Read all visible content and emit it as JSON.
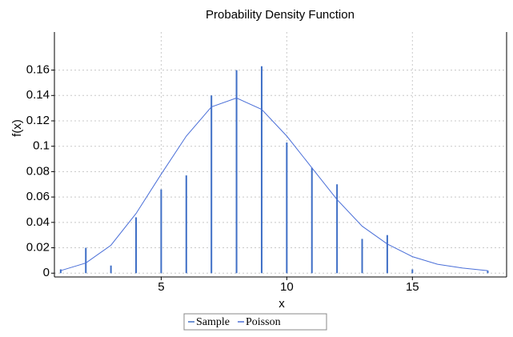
{
  "chart_data": {
    "type": "stem_line",
    "title": "Probability Density Function",
    "x_label": "x",
    "y_label": "f(x)",
    "x": [
      1,
      2,
      3,
      4,
      5,
      6,
      7,
      8,
      9,
      10,
      11,
      12,
      13,
      14,
      15,
      16,
      17,
      18
    ],
    "series": [
      {
        "name": "Sample",
        "color": "#3f6fc6",
        "style": "stem",
        "values": [
          0.003,
          0.02,
          0.006,
          0.044,
          0.066,
          0.077,
          0.14,
          0.16,
          0.163,
          0.103,
          0.083,
          0.07,
          0.027,
          0.03,
          0.003,
          0,
          0,
          0.002
        ]
      },
      {
        "name": "Poisson",
        "color": "#4a6fd8",
        "style": "line",
        "values": [
          0.002,
          0.008,
          0.022,
          0.047,
          0.078,
          0.108,
          0.131,
          0.138,
          0.129,
          0.108,
          0.083,
          0.058,
          0.037,
          0.023,
          0.013,
          0.007,
          0.004,
          0.002
        ]
      }
    ],
    "xlim": [
      0.75,
      18.75
    ],
    "xticks": [
      5,
      10,
      15
    ],
    "ylim": [
      -0.003,
      0.19
    ],
    "yticks": [
      0,
      0.02,
      0.04,
      0.06,
      0.08,
      0.1,
      0.12,
      0.14,
      0.16
    ],
    "grid": true,
    "legend": "bottom"
  }
}
